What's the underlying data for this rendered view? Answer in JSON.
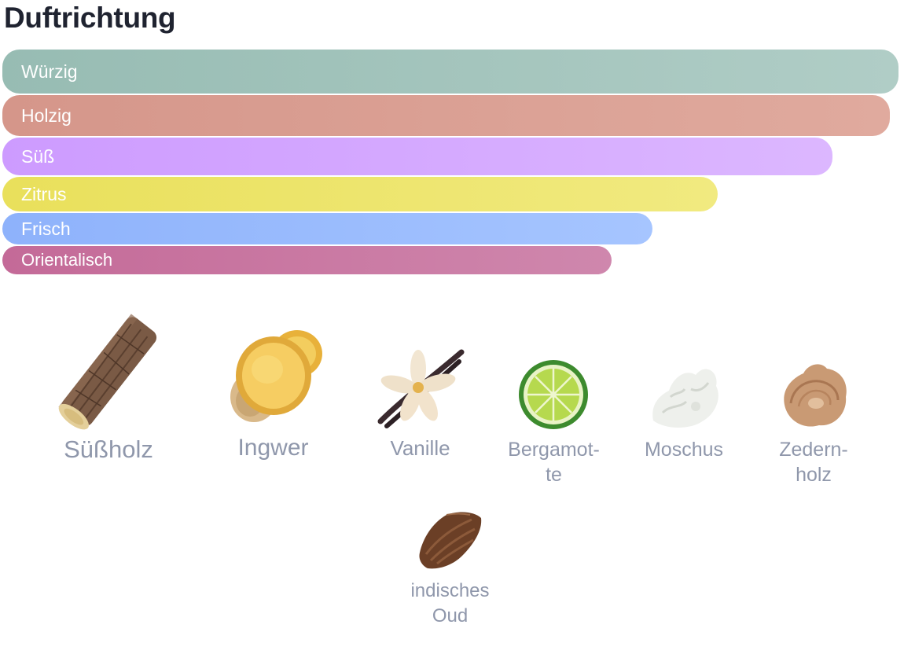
{
  "section": {
    "title": "Duftrichtung"
  },
  "scent_bars": [
    {
      "label": "Würzig",
      "level": 1.0,
      "color": "#97bcb3"
    },
    {
      "label": "Holzig",
      "level": 0.99,
      "color": "#d5968a"
    },
    {
      "label": "Süß",
      "level": 0.93,
      "color": "#cd9bff"
    },
    {
      "label": "Zitrus",
      "level": 0.8,
      "color": "#e9e05b"
    },
    {
      "label": "Frisch",
      "level": 0.73,
      "color": "#8eb2fb"
    },
    {
      "label": "Orientalisch",
      "level": 0.68,
      "color": "#c46a98"
    }
  ],
  "notes": [
    {
      "line1": "Süßholz",
      "line2": "",
      "icon": "licorice-root-icon"
    },
    {
      "line1": "Ingwer",
      "line2": "",
      "icon": "ginger-icon"
    },
    {
      "line1": "Vanille",
      "line2": "",
      "icon": "vanilla-icon"
    },
    {
      "line1": "Bergamot-",
      "line2": "te",
      "icon": "bergamot-icon"
    },
    {
      "line1": "Moschus",
      "line2": "",
      "icon": "musk-icon"
    },
    {
      "line1": "Zedern-",
      "line2": "holz",
      "icon": "cedarwood-icon"
    },
    {
      "line1": "indisches",
      "line2": "Oud",
      "icon": "oud-icon"
    }
  ]
}
